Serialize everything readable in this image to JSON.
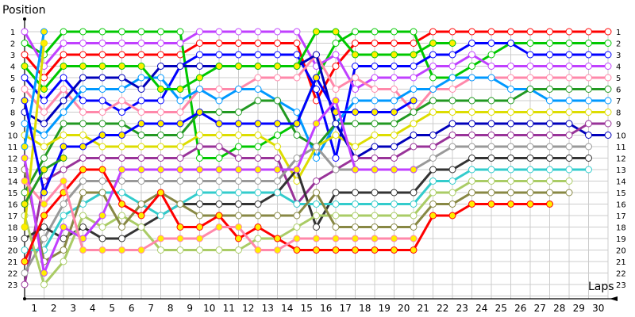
{
  "chart_data": {
    "type": "line",
    "title": "",
    "xlabel": "Laps",
    "ylabel": "Position",
    "x_ticks": [
      "1",
      "2",
      "3",
      "4",
      "5",
      "6",
      "7",
      "8",
      "9",
      "10",
      "11",
      "12",
      "13",
      "14",
      "15",
      "16",
      "17",
      "18",
      "19",
      "20",
      "21",
      "22",
      "23",
      "24",
      "25",
      "26",
      "27",
      "28",
      "29",
      "30"
    ],
    "y_ticks": [
      "1",
      "2",
      "3",
      "4",
      "5",
      "6",
      "7",
      "8",
      "9",
      "10",
      "11",
      "12",
      "13",
      "14",
      "15",
      "16",
      "17",
      "18",
      "19",
      "20",
      "21",
      "22",
      "23"
    ],
    "xlim": [
      0,
      30
    ],
    "ylim": [
      23,
      1
    ],
    "grid": true,
    "legend": "none",
    "right_labels": [
      "1",
      "2",
      "3",
      "4",
      "5",
      "6",
      "7",
      "8",
      "9",
      "10",
      "11",
      "12",
      "13",
      "14",
      "15",
      "16",
      "17",
      "18",
      "19",
      "20",
      "21",
      "22",
      "23"
    ],
    "series": [
      {
        "name": "red-hollow",
        "color": "#ff0000",
        "marker": "hollow",
        "values": [
          3,
          5,
          3,
          3,
          3,
          3,
          3,
          3,
          3,
          2,
          2,
          2,
          2,
          2,
          2,
          7,
          4,
          2,
          2,
          2,
          2,
          1,
          1,
          1,
          1,
          1,
          1,
          1,
          1,
          1,
          1
        ]
      },
      {
        "name": "green-hollow",
        "color": "#00c800",
        "marker": "hollow",
        "values": [
          2,
          3,
          1,
          1,
          1,
          1,
          1,
          1,
          1,
          12,
          12,
          11,
          11,
          10,
          9,
          5,
          2,
          1,
          1,
          1,
          1,
          5,
          5,
          4,
          3,
          2,
          2,
          2,
          2,
          2,
          2
        ]
      },
      {
        "name": "blue-hollow",
        "color": "#0000ff",
        "marker": "hollow",
        "values": [
          5,
          7,
          5,
          7,
          7,
          8,
          7,
          7,
          4,
          3,
          3,
          3,
          3,
          3,
          3,
          6,
          12,
          4,
          4,
          4,
          4,
          3,
          3,
          2,
          2,
          2,
          3,
          3,
          3,
          3,
          3
        ]
      },
      {
        "name": "violet-hollow",
        "color": "#c040ff",
        "marker": "hollow",
        "values": [
          1,
          4,
          2,
          2,
          2,
          2,
          2,
          2,
          2,
          1,
          1,
          1,
          1,
          1,
          1,
          4,
          3,
          6,
          5,
          5,
          5,
          4,
          4,
          3,
          4,
          4,
          4,
          4,
          4,
          4,
          4
        ]
      },
      {
        "name": "pink-hollow",
        "color": "#ff88aa",
        "marker": "hollow",
        "values": [
          6,
          8,
          6,
          8,
          8,
          7,
          8,
          8,
          8,
          6,
          6,
          6,
          5,
          5,
          5,
          3,
          6,
          5,
          6,
          6,
          8,
          6,
          6,
          5,
          5,
          5,
          5,
          5,
          5,
          5,
          5
        ]
      },
      {
        "name": "sky-hollow",
        "color": "#0099ff",
        "marker": "hollow",
        "values": [
          9,
          10,
          8,
          6,
          6,
          6,
          5,
          5,
          7,
          6,
          7,
          6,
          6,
          7,
          8,
          12,
          9,
          7,
          7,
          7,
          6,
          6,
          5,
          5,
          5,
          6,
          6,
          7,
          7,
          7,
          7
        ]
      },
      {
        "name": "darkgreen-hollow",
        "color": "#229922",
        "marker": "hollow",
        "values": [
          15,
          12,
          9,
          9,
          9,
          9,
          10,
          10,
          10,
          8,
          8,
          8,
          7,
          7,
          10,
          11,
          9,
          9,
          9,
          9,
          8,
          7,
          7,
          7,
          7,
          7,
          6,
          6,
          6,
          6,
          6
        ]
      },
      {
        "name": "yellow-hollow",
        "color": "#dddd00",
        "marker": "hollow",
        "values": [
          10,
          11,
          10,
          10,
          11,
          11,
          11,
          11,
          11,
          10,
          10,
          10,
          10,
          11,
          14,
          11,
          10,
          11,
          10,
          10,
          9,
          8,
          8,
          8,
          8,
          8,
          8,
          8,
          8,
          8,
          8
        ]
      },
      {
        "name": "navy-hollow",
        "color": "#0000bb",
        "marker": "hollow",
        "values": [
          8,
          9,
          7,
          5,
          5,
          5,
          6,
          4,
          4,
          4,
          4,
          4,
          4,
          4,
          4,
          3,
          9,
          12,
          11,
          11,
          10,
          10,
          9,
          9,
          9,
          9,
          9,
          9,
          9,
          10,
          10
        ]
      },
      {
        "name": "purple-hollow",
        "color": "#993399",
        "marker": "hollow",
        "values": [
          23,
          14,
          13,
          12,
          12,
          12,
          12,
          12,
          12,
          11,
          11,
          12,
          12,
          12,
          16,
          14,
          13,
          12,
          12,
          12,
          11,
          11,
          10,
          10,
          10,
          10,
          10,
          10,
          10,
          9,
          9
        ]
      },
      {
        "name": "gray-hollow",
        "color": "#999999",
        "marker": "hollow",
        "values": [
          22,
          19,
          16,
          14,
          14,
          14,
          14,
          14,
          14,
          14,
          14,
          14,
          14,
          14,
          12,
          11,
          13,
          13,
          13,
          13,
          13,
          12,
          11,
          11,
          11,
          11,
          11,
          11,
          11,
          11,
          null
        ]
      },
      {
        "name": "black-hollow",
        "color": "#333333",
        "marker": "hollow",
        "values": [
          19,
          18,
          19,
          18,
          19,
          19,
          18,
          17,
          16,
          16,
          16,
          16,
          16,
          15,
          13,
          18,
          15,
          15,
          15,
          15,
          15,
          13,
          13,
          12,
          12,
          12,
          12,
          12,
          12,
          12,
          null
        ]
      },
      {
        "name": "teal-hollow",
        "color": "#33cccc",
        "marker": "hollow",
        "values": [
          20,
          20,
          17,
          16,
          15,
          15,
          16,
          17,
          16,
          15,
          15,
          15,
          15,
          15,
          16,
          16,
          16,
          16,
          16,
          16,
          16,
          14,
          14,
          13,
          13,
          13,
          13,
          13,
          13,
          13,
          null
        ]
      },
      {
        "name": "lightgreen-hollow",
        "color": "#aacc66",
        "marker": "hollow",
        "values": [
          17,
          23,
          21,
          17,
          18,
          17,
          18,
          20,
          20,
          20,
          20,
          20,
          19,
          19,
          18,
          17,
          17,
          17,
          17,
          17,
          17,
          15,
          15,
          14,
          14,
          14,
          14,
          14,
          14,
          null,
          null
        ]
      },
      {
        "name": "olive-hollow",
        "color": "#888844",
        "marker": "hollow",
        "values": [
          13,
          21,
          20,
          15,
          15,
          18,
          16,
          15,
          16,
          17,
          17,
          17,
          17,
          17,
          17,
          15,
          18,
          18,
          18,
          18,
          18,
          16,
          16,
          15,
          15,
          15,
          15,
          15,
          15,
          null,
          null
        ]
      },
      {
        "name": "green-yellow",
        "color": "#00c800",
        "marker": "yellow",
        "values": [
          4,
          6,
          4,
          4,
          4,
          4,
          4,
          6,
          6,
          5,
          4,
          4,
          4,
          4,
          4,
          1,
          1,
          3,
          3,
          3,
          3,
          2,
          2,
          null,
          null,
          null,
          null,
          null,
          null,
          null,
          null
        ]
      },
      {
        "name": "sky-yellow",
        "color": "#0099ff",
        "marker": "yellow",
        "values": [
          11,
          1,
          null,
          null,
          null,
          null,
          null,
          null,
          null,
          null,
          null,
          null,
          null,
          null,
          null,
          null,
          null,
          null,
          null,
          null,
          null,
          null,
          null,
          null,
          null,
          null,
          null,
          null,
          null,
          null,
          null
        ]
      },
      {
        "name": "yellow-yellow",
        "color": "#dddd00",
        "marker": "yellow",
        "values": [
          18,
          2,
          null,
          null,
          null,
          null,
          null,
          null,
          null,
          null,
          null,
          null,
          null,
          null,
          null,
          null,
          null,
          null,
          null,
          null,
          null,
          null,
          null,
          null,
          null,
          null,
          null,
          null,
          null,
          null,
          null
        ]
      },
      {
        "name": "blue-yellow",
        "color": "#0000ff",
        "marker": "yellow",
        "values": [
          7,
          15,
          11,
          11,
          10,
          10,
          9,
          9,
          9,
          8,
          9,
          9,
          9,
          9,
          9,
          5,
          8,
          8,
          8,
          8,
          7,
          null,
          null,
          null,
          null,
          null,
          null,
          null,
          null,
          null,
          null
        ]
      },
      {
        "name": "violet-yellow",
        "color": "#c040ff",
        "marker": "yellow",
        "values": [
          12,
          22,
          18,
          19,
          17,
          13,
          13,
          13,
          13,
          13,
          13,
          13,
          13,
          13,
          13,
          9,
          7,
          13,
          13,
          13,
          13,
          null,
          null,
          null,
          null,
          null,
          null,
          null,
          null,
          null,
          null
        ]
      },
      {
        "name": "red-yellow",
        "color": "#ff0000",
        "marker": "yellow",
        "values": [
          21,
          17,
          15,
          13,
          13,
          16,
          17,
          15,
          18,
          18,
          17,
          19,
          18,
          19,
          20,
          20,
          20,
          20,
          20,
          20,
          20,
          17,
          17,
          16,
          16,
          16,
          16,
          16,
          null,
          null,
          null
        ]
      },
      {
        "name": "pink-yellow",
        "color": "#ff88aa",
        "marker": "yellow",
        "values": [
          14,
          16,
          14,
          20,
          20,
          20,
          20,
          19,
          19,
          19,
          18,
          18,
          20,
          20,
          19,
          19,
          19,
          19,
          19,
          19,
          19,
          null,
          null,
          null,
          null,
          null,
          null,
          null,
          null,
          null,
          null
        ]
      },
      {
        "name": "darkgreen-yellow",
        "color": "#229922",
        "marker": "yellow",
        "values": [
          16,
          13,
          12,
          null,
          null,
          null,
          null,
          null,
          null,
          null,
          null,
          null,
          null,
          null,
          null,
          null,
          null,
          null,
          null,
          null,
          null,
          null,
          null,
          null,
          null,
          null,
          null,
          null,
          null,
          null,
          null
        ]
      }
    ]
  },
  "labels": {
    "y_axis_title": "Position",
    "x_axis_title": "Laps"
  }
}
